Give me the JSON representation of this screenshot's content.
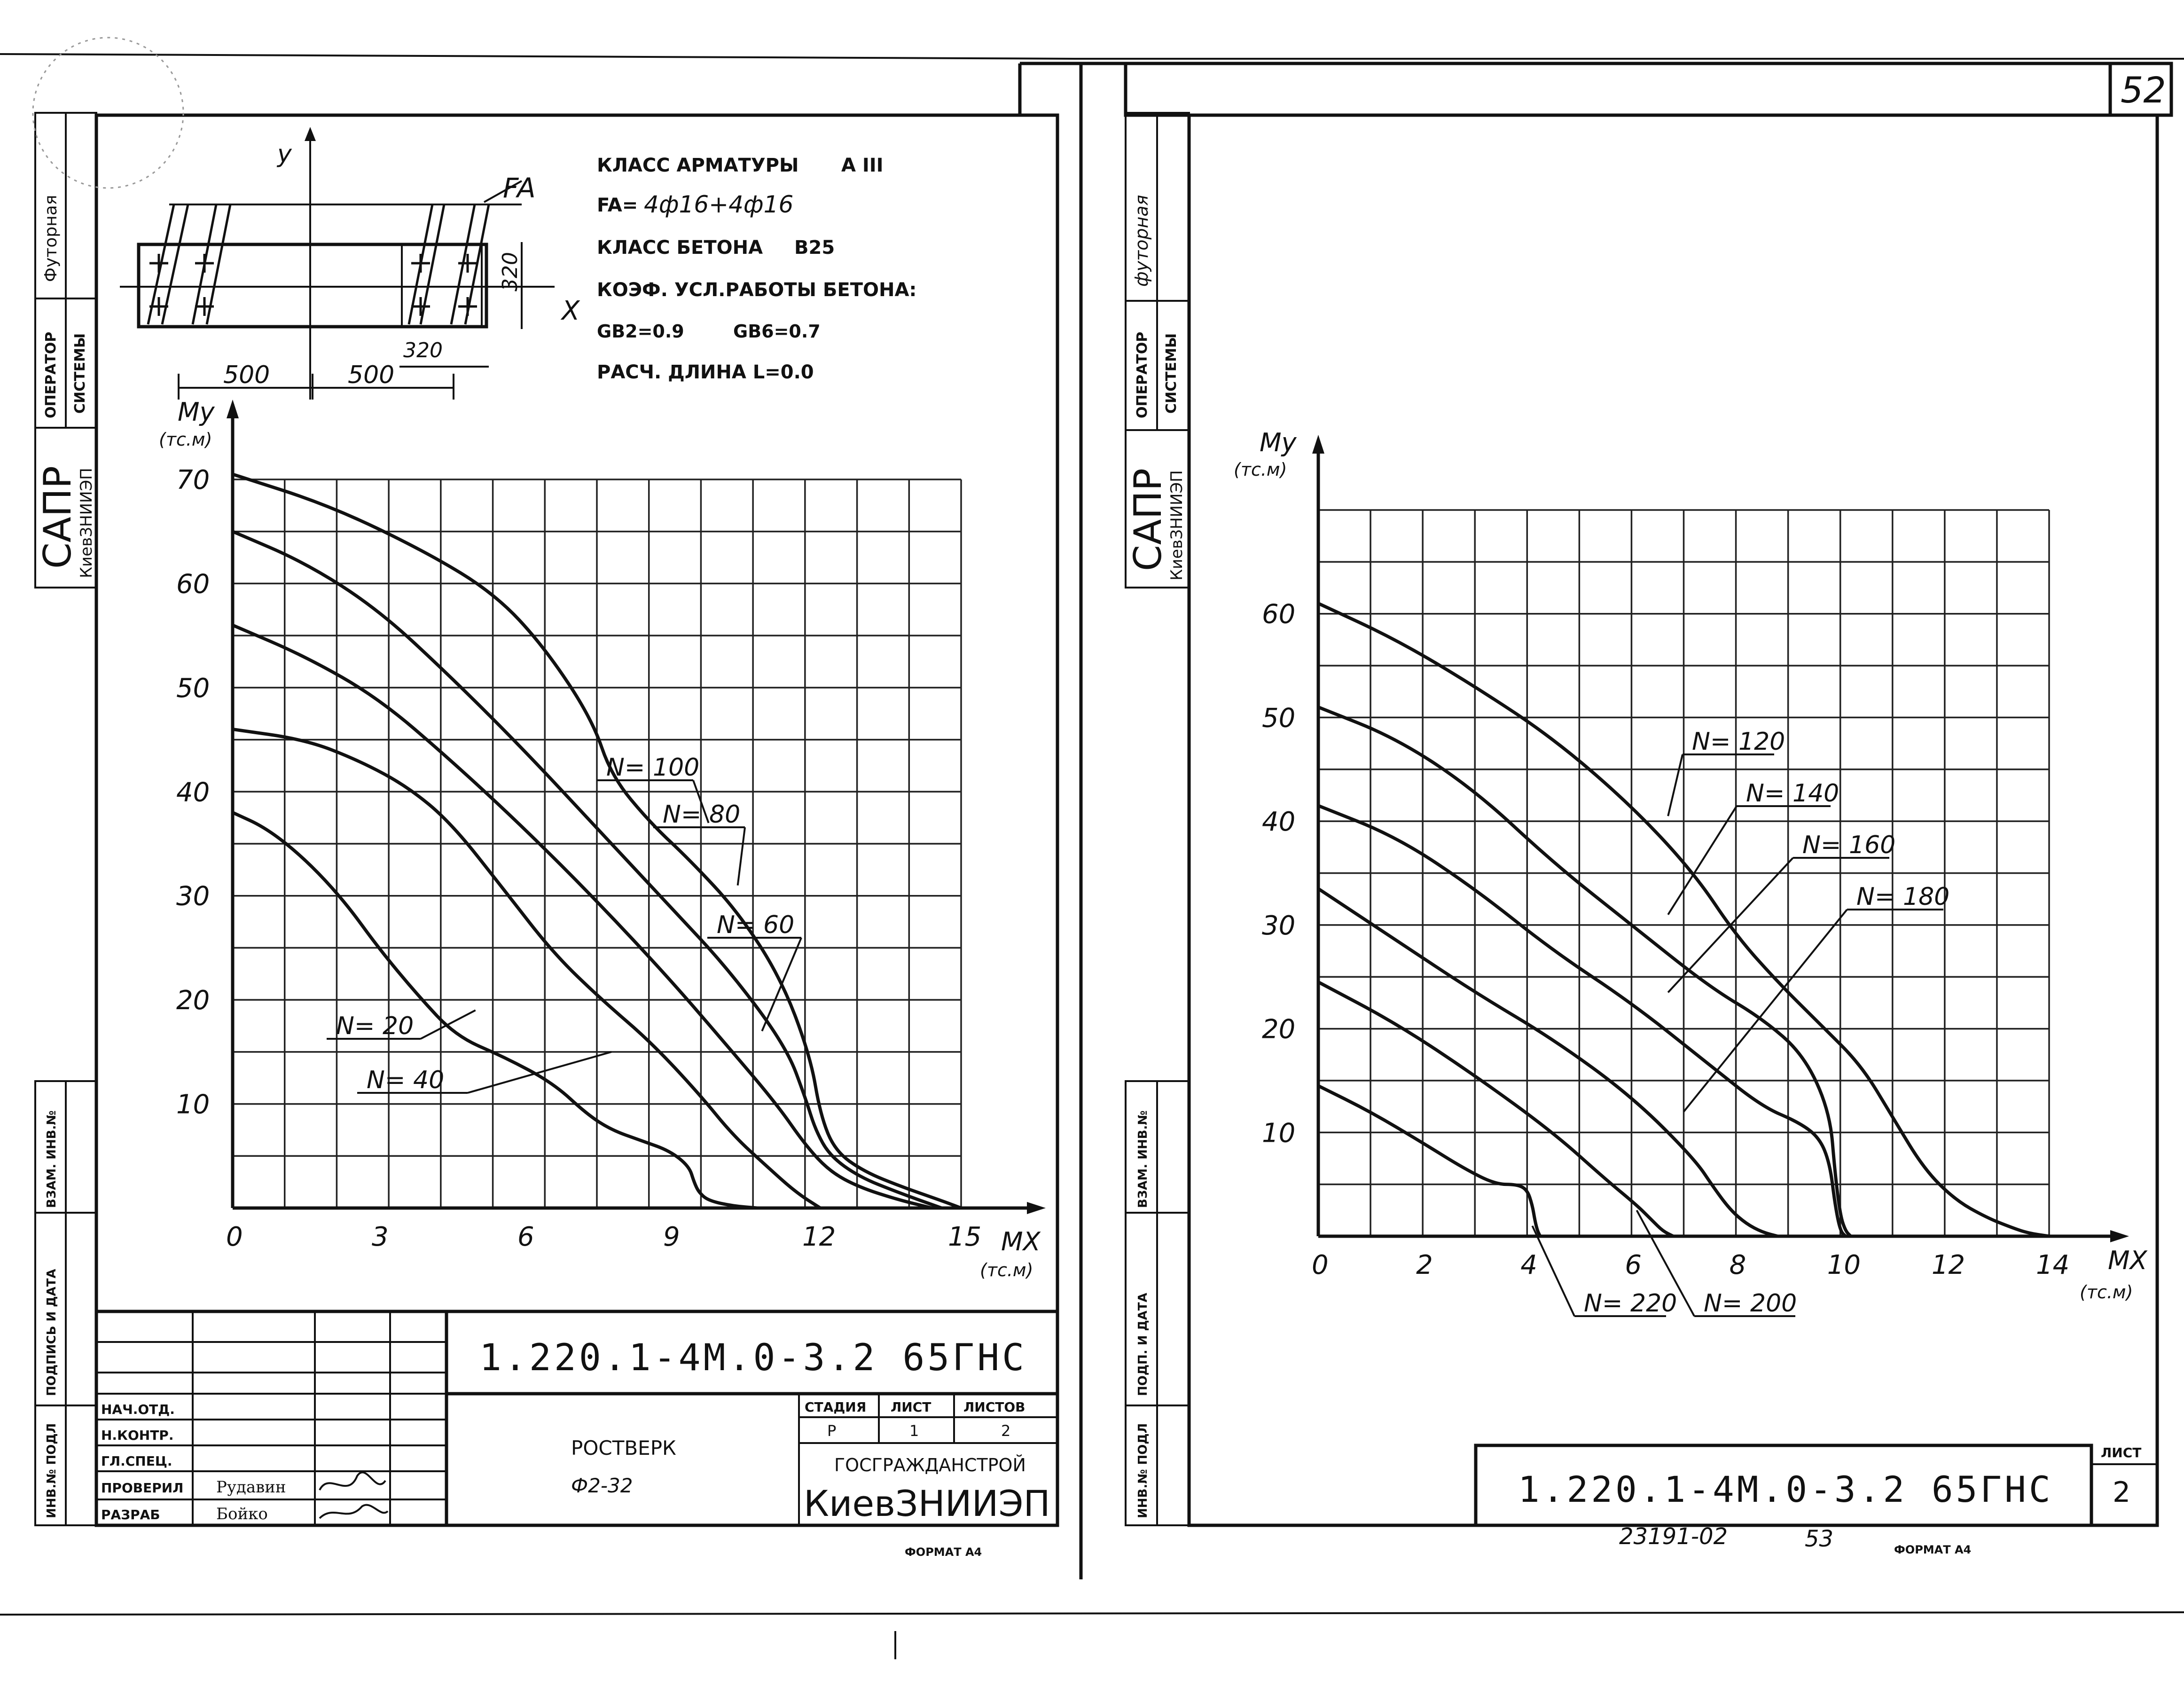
{
  "sheet_number": "52",
  "left_sheet": {
    "side_stamp": {
      "futornaya": "Футорная",
      "operator": "ОПЕРАТОР",
      "sistemy": "СИСТЕМЫ",
      "sapr": "САПР",
      "kiev": "КиевЗНИИЭП",
      "vzam_inv": "ВЗАМ. ИНВ.№",
      "podpis_data": "ПОДПИСЬ И ДАТА",
      "inv_podl": "ИНВ.№ ПОДЛ"
    },
    "section": {
      "y": "y",
      "x": "X",
      "fa": "FA",
      "dim_500a": "500",
      "dim_500b": "500",
      "dim_320a": "320",
      "dim_320b": "320"
    },
    "spec": {
      "line1_label": "КЛАСС АРМАТУРЫ",
      "line1_value": "A III",
      "line2_label": "FA=",
      "line2_value": "4ф16+4ф16",
      "line3_label": "КЛАСС БЕТОНА",
      "line3_value": "B25",
      "line4": "КОЭФ. УСЛ.РАБОТЫ БЕТОНА:",
      "line5a": "GB2=0.9",
      "line5b": "GB6=0.7",
      "line6": "РАСЧ. ДЛИНА L=0.0"
    },
    "title_block": {
      "doc_code": "1.220.1-4М.0-3.2 65ГНС",
      "rows": [
        "НАЧ.ОТД.",
        "Н.КОНТР.",
        "ГЛ.СПЕЦ.",
        "ПРОВЕРИЛ",
        "РАЗРАБ"
      ],
      "names": [
        "",
        "",
        "",
        "Рудавин",
        "Бойко"
      ],
      "item_title": "РОСТВЕРК",
      "item_code": "Ф2-32",
      "stage_label": "СТАДИЯ",
      "sheet_label": "ЛИСТ",
      "sheets_label": "ЛИСТОВ",
      "stage": "Р",
      "sheet": "1",
      "sheets": "2",
      "org1": "ГОСГРАЖДАНСТРОЙ",
      "org2": "КиевЗНИИЭП",
      "format": "ФОРМАТ А4"
    }
  },
  "right_sheet": {
    "side_stamp": {
      "futornaya": "футорная",
      "operator": "ОПЕРАТОР",
      "sistemy": "СИСТЕМЫ",
      "sapr": "САПР",
      "kiev": "КиевЗНИИЭП",
      "vzam_inv": "ВЗАМ. ИНВ.№",
      "podpis_data": "ПОДП. И ДАТА",
      "inv_podl": "ИНВ.№ ПОДЛ"
    },
    "title_block": {
      "doc_code": "1.220.1-4М.0-3.2 65ГНС",
      "sheet_label": "ЛИСТ",
      "sheet": "2",
      "format": "ФОРМАТ А4",
      "archive": "23191-02",
      "archive_page": "53"
    }
  },
  "chart_data": [
    {
      "type": "line",
      "title": "",
      "xlabel": "MX",
      "xunit": "(тс.м)",
      "ylabel": "My",
      "yunit": "(тс.м)",
      "xlim": [
        0,
        15
      ],
      "ylim": [
        0,
        70
      ],
      "xticks": [
        "0",
        "3",
        "6",
        "9",
        "12",
        "15"
      ],
      "yticks": [
        "10",
        "20",
        "30",
        "40",
        "50",
        "60",
        "70"
      ],
      "grid": true,
      "series": [
        {
          "name": "N= 100",
          "x": [
            0,
            2,
            4,
            5.4,
            6.4,
            7.4,
            7.8,
            8.6,
            9.4,
            10.4,
            11.3,
            11.9,
            12.1,
            12.4,
            13.0,
            13.8,
            14.6,
            15.0
          ],
          "y": [
            70.5,
            67.5,
            63,
            59,
            54,
            47,
            41.5,
            37,
            33.5,
            28.5,
            22,
            14.5,
            9,
            5.5,
            3.5,
            2,
            0.7,
            0
          ]
        },
        {
          "name": "N= 80",
          "x": [
            0,
            1.5,
            3,
            4.5,
            6,
            7.5,
            9,
            10.2,
            11.4,
            11.8,
            12.0,
            12.3,
            12.9,
            13.7,
            14.6
          ],
          "y": [
            65,
            62,
            57.5,
            51,
            44,
            36.5,
            29,
            23,
            15.5,
            10.5,
            7.5,
            5,
            3,
            1.5,
            0
          ]
        },
        {
          "name": "N= 60",
          "x": [
            0,
            1.5,
            3,
            4.5,
            6,
            7.5,
            9,
            10.2,
            11.2,
            11.8,
            12.3,
            12.9,
            13.7,
            14.4
          ],
          "y": [
            56,
            53,
            49,
            43,
            36.5,
            29.5,
            22,
            15.5,
            10,
            6,
            3.5,
            2,
            0.8,
            0
          ]
        },
        {
          "name": "N= 40",
          "x": [
            0,
            1.5,
            2.6,
            3.6,
            4.5,
            5.6,
            6.6,
            7.6,
            8.6,
            9.6,
            10.3,
            11.0,
            11.6,
            12.1
          ],
          "y": [
            46,
            45,
            43,
            40.5,
            37,
            30.5,
            24.5,
            20,
            16,
            11,
            7,
            4,
            1.5,
            0
          ]
        },
        {
          "name": "N= 20",
          "x": [
            0,
            0.7,
            1.5,
            2.3,
            3.0,
            3.8,
            4.6,
            5.6,
            6.6,
            7.3,
            7.8,
            8.4,
            9.0,
            9.4,
            9.5,
            9.6,
            9.8,
            10.3,
            10.8
          ],
          "y": [
            38,
            36.5,
            33.5,
            29.5,
            25,
            20.5,
            16.5,
            14.5,
            12,
            9,
            7.5,
            6.5,
            5.5,
            4,
            2.5,
            1.5,
            0.7,
            0.2,
            0
          ]
        }
      ]
    },
    {
      "type": "line",
      "title": "",
      "xlabel": "MX",
      "xunit": "(тс.м)",
      "ylabel": "My",
      "yunit": "(тс.м)",
      "xlim": [
        0,
        14
      ],
      "ylim": [
        0,
        70
      ],
      "xticks": [
        "0",
        "2",
        "4",
        "6",
        "8",
        "10",
        "12",
        "14"
      ],
      "yticks": [
        "10",
        "20",
        "30",
        "40",
        "50",
        "60"
      ],
      "grid": true,
      "series": [
        {
          "name": "N= 120",
          "x": [
            0,
            1.5,
            3,
            4.5,
            6,
            7.2,
            8.0,
            8.8,
            9.6,
            10.4,
            11.0,
            11.6,
            12.2,
            12.8,
            13.3,
            13.6,
            14.0
          ],
          "y": [
            61,
            57.5,
            53,
            48,
            41.5,
            35,
            29,
            24.5,
            20.5,
            16.5,
            11.5,
            6.5,
            3.5,
            1.8,
            0.8,
            0.3,
            0
          ]
        },
        {
          "name": "N= 140",
          "x": [
            0,
            1.5,
            3,
            4.5,
            6,
            7.5,
            8.5,
            9.3,
            9.8,
            9.9,
            10.0,
            10.1,
            10.2
          ],
          "y": [
            51,
            48,
            43,
            36,
            30,
            24,
            21,
            17.5,
            12,
            6,
            2,
            0.5,
            0
          ]
        },
        {
          "name": "N= 160",
          "x": [
            0,
            1.5,
            3,
            4.5,
            6,
            7.5,
            8.5,
            9.2,
            9.6,
            9.8,
            9.9,
            10.0,
            10.1
          ],
          "y": [
            41.5,
            38.5,
            33.5,
            27.5,
            22.5,
            16.5,
            12.5,
            11,
            9.5,
            7,
            3,
            0.5,
            0
          ]
        },
        {
          "name": "N= 180",
          "x": [
            0,
            1.5,
            3,
            4.5,
            6,
            7.2,
            7.6,
            7.9,
            8.2,
            8.5,
            8.8
          ],
          "y": [
            33.5,
            28.5,
            23.5,
            19,
            13.5,
            7.5,
            4.5,
            2.5,
            1.2,
            0.4,
            0
          ]
        },
        {
          "name": "N= 200",
          "x": [
            0,
            1.5,
            3,
            4.5,
            5.5,
            6.1,
            6.4,
            6.6,
            6.8
          ],
          "y": [
            24.5,
            20.5,
            15.5,
            10,
            5.5,
            3,
            1.5,
            0.5,
            0
          ]
        },
        {
          "name": "N= 220",
          "x": [
            0,
            1,
            2,
            2.8,
            3.4,
            3.8,
            4.0,
            4.1,
            4.15,
            4.2,
            4.25
          ],
          "y": [
            14.5,
            12,
            9,
            6.5,
            5,
            5,
            4.5,
            3,
            1.5,
            0.5,
            0
          ]
        }
      ]
    }
  ]
}
